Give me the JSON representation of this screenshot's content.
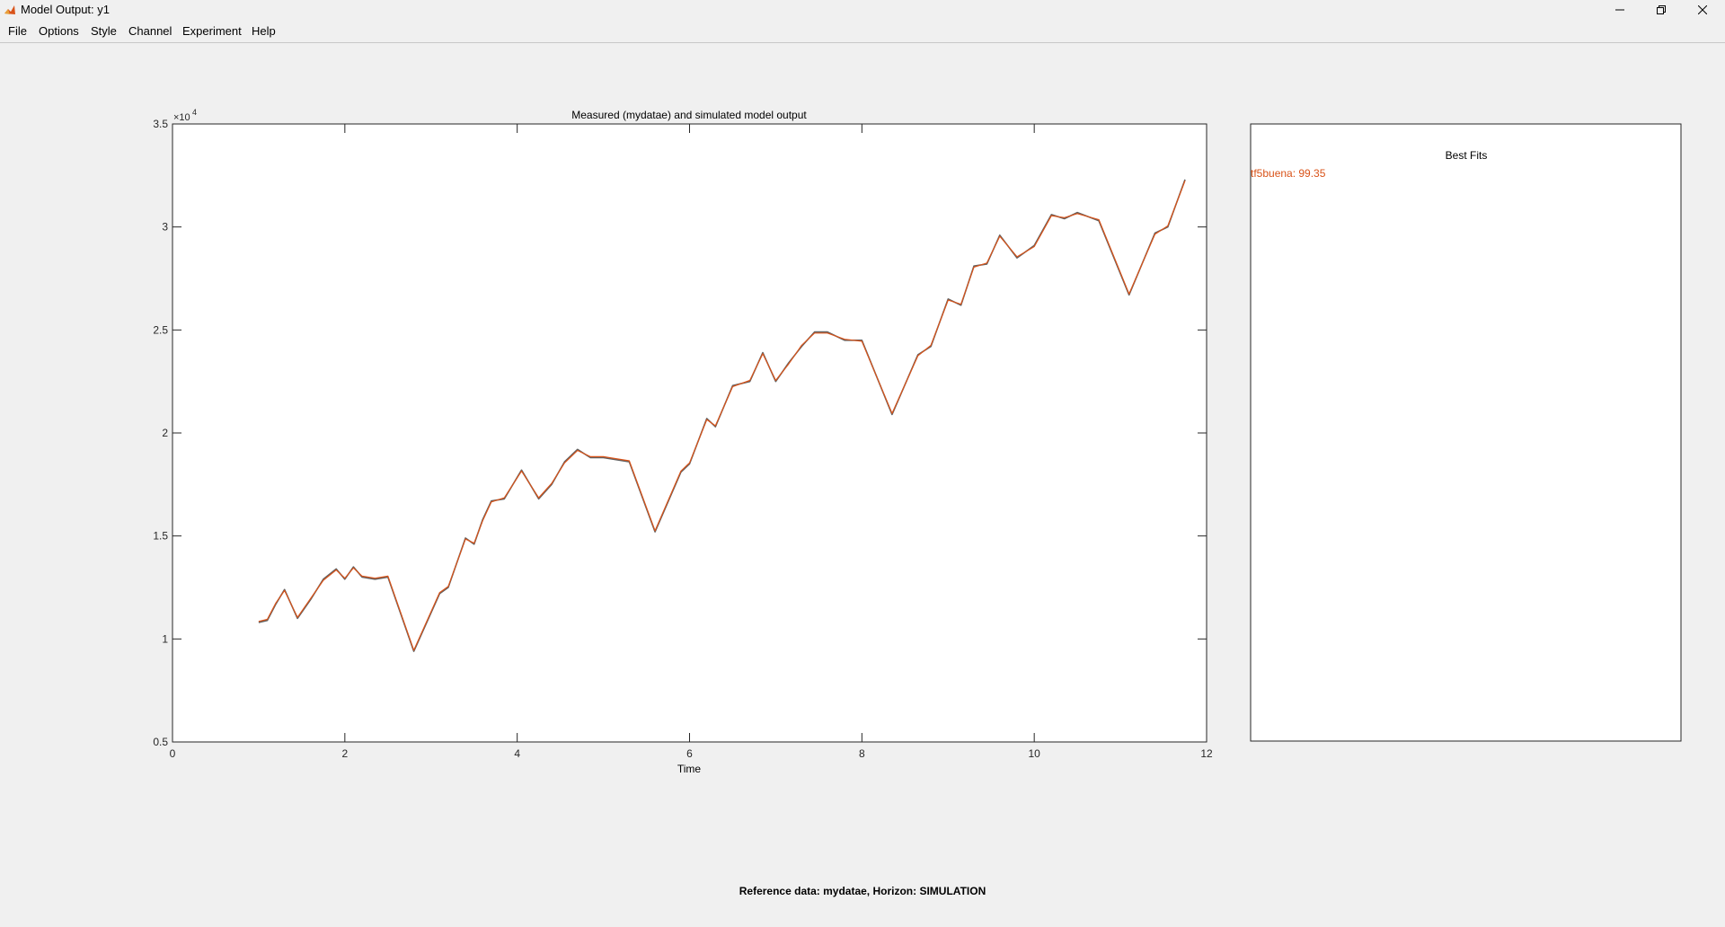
{
  "window": {
    "title": "Model Output: y1"
  },
  "menubar": {
    "items": [
      {
        "label": "File"
      },
      {
        "label": "Options"
      },
      {
        "label": "Style"
      },
      {
        "label": "Channel"
      },
      {
        "label": "Experiment"
      },
      {
        "label": "Help"
      }
    ]
  },
  "plot": {
    "title": "Measured (mydatae) and simulated model output",
    "xlabel": "Time",
    "exponent_base": "×10",
    "exponent_power": "4"
  },
  "fits_panel": {
    "title": "Best Fits",
    "entries": [
      {
        "label": "tf5buena: 99.35",
        "color": "#d95319"
      }
    ]
  },
  "footer": {
    "text": "Reference data:  mydatae, Horizon: SIMULATION"
  },
  "chart_data": {
    "type": "line",
    "title": "Measured (mydatae) and simulated model output",
    "xlabel": "Time",
    "ylabel": "",
    "xlim": [
      0,
      12
    ],
    "ylim": [
      5000,
      35000
    ],
    "xticks": [
      0,
      2,
      4,
      6,
      8,
      10,
      12
    ],
    "yticks": [
      5000,
      10000,
      15000,
      20000,
      25000,
      30000,
      35000
    ],
    "ytick_labels": [
      "0.5",
      "1",
      "1.5",
      "2",
      "2.5",
      "3",
      "3.5"
    ],
    "grid": false,
    "series": [
      {
        "name": "mydatae",
        "color": "#606060",
        "x": [
          1.0,
          1.1,
          1.2,
          1.3,
          1.45,
          1.6,
          1.75,
          1.9,
          2.0,
          2.1,
          2.2,
          2.35,
          2.5,
          2.8,
          3.1,
          3.2,
          3.4,
          3.5,
          3.6,
          3.7,
          3.85,
          4.05,
          4.25,
          4.4,
          4.55,
          4.7,
          4.85,
          5.0,
          5.3,
          5.6,
          5.9,
          6.0,
          6.2,
          6.3,
          6.5,
          6.7,
          6.85,
          7.0,
          7.15,
          7.3,
          7.45,
          7.6,
          7.8,
          8.0,
          8.35,
          8.65,
          8.8,
          9.0,
          9.15,
          9.3,
          9.45,
          9.6,
          9.8,
          10.0,
          10.2,
          10.35,
          10.5,
          10.75,
          11.1,
          11.4,
          11.55,
          11.75
        ],
        "y": [
          10800,
          10900,
          11700,
          12400,
          11000,
          11900,
          12900,
          13400,
          12900,
          13500,
          13000,
          12900,
          13000,
          9400,
          12200,
          12500,
          14900,
          14600,
          15800,
          16700,
          16800,
          18200,
          16800,
          17500,
          18600,
          19200,
          18800,
          18800,
          18600,
          15200,
          18100,
          18500,
          20700,
          20300,
          22300,
          22500,
          23900,
          22500,
          23400,
          24200,
          24900,
          24900,
          24500,
          24500,
          20900,
          23800,
          24200,
          26500,
          26200,
          28100,
          28200,
          29600,
          28500,
          29100,
          30600,
          30400,
          30700,
          30300,
          26700,
          29700,
          30000,
          32300
        ]
      },
      {
        "name": "tf5buena: 99.35",
        "color": "#d95319",
        "x": [
          1.0,
          1.1,
          1.2,
          1.3,
          1.45,
          1.6,
          1.75,
          1.9,
          2.0,
          2.1,
          2.2,
          2.35,
          2.5,
          2.8,
          3.1,
          3.2,
          3.4,
          3.5,
          3.6,
          3.7,
          3.85,
          4.05,
          4.25,
          4.4,
          4.55,
          4.7,
          4.85,
          5.0,
          5.3,
          5.6,
          5.9,
          6.0,
          6.2,
          6.3,
          6.5,
          6.7,
          6.85,
          7.0,
          7.15,
          7.3,
          7.45,
          7.6,
          7.8,
          8.0,
          8.35,
          8.65,
          8.8,
          9.0,
          9.15,
          9.3,
          9.45,
          9.6,
          9.8,
          10.0,
          10.2,
          10.35,
          10.5,
          10.75,
          11.1,
          11.4,
          11.55,
          11.75
        ],
        "y": [
          10850,
          10950,
          11750,
          12350,
          11050,
          11950,
          12850,
          13350,
          12950,
          13450,
          13050,
          12950,
          13050,
          9450,
          12250,
          12550,
          14850,
          14650,
          15750,
          16650,
          16850,
          18150,
          16850,
          17550,
          18550,
          19150,
          18850,
          18850,
          18650,
          15250,
          18150,
          18550,
          20650,
          20350,
          22250,
          22550,
          23850,
          22550,
          23350,
          24250,
          24850,
          24850,
          24550,
          24450,
          20950,
          23750,
          24250,
          26450,
          26250,
          28050,
          28250,
          29550,
          28550,
          29050,
          30550,
          30450,
          30650,
          30350,
          26750,
          29650,
          30050,
          32250
        ]
      }
    ]
  }
}
